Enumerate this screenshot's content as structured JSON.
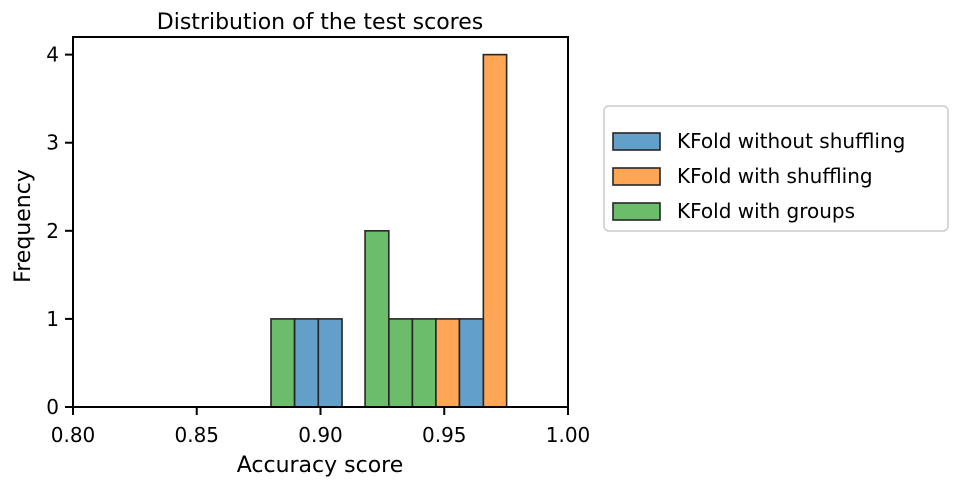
{
  "chart_data": {
    "type": "bar",
    "title": "Distribution of the test scores",
    "xlabel": "Accuracy score",
    "ylabel": "Frequency",
    "xlim": [
      0.8,
      1.0
    ],
    "ylim": [
      0,
      4.2
    ],
    "xticks": [
      "0.80",
      "0.85",
      "0.90",
      "0.95",
      "1.00"
    ],
    "yticks": [
      "0",
      "1",
      "2",
      "3",
      "4"
    ],
    "legend_position": "outside-right",
    "series": [
      {
        "name": "KFold without shuffling",
        "color": "#1f77b4",
        "bins": [
          {
            "x0": 0.8895,
            "x1": 0.8991,
            "count": 1
          },
          {
            "x0": 0.8991,
            "x1": 0.9087,
            "count": 1
          },
          {
            "x0": 0.9561,
            "x1": 0.9658,
            "count": 1
          }
        ]
      },
      {
        "name": "KFold with shuffling",
        "color": "#ff7f0e",
        "bins": [
          {
            "x0": 0.9466,
            "x1": 0.9561,
            "count": 1
          },
          {
            "x0": 0.9658,
            "x1": 0.9752,
            "count": 4
          }
        ]
      },
      {
        "name": "KFold with groups",
        "color": "#2ca02c",
        "bins": [
          {
            "x0": 0.88,
            "x1": 0.8895,
            "count": 1
          },
          {
            "x0": 0.918,
            "x1": 0.9276,
            "count": 2
          },
          {
            "x0": 0.9276,
            "x1": 0.9371,
            "count": 1
          },
          {
            "x0": 0.9371,
            "x1": 0.9466,
            "count": 1
          }
        ]
      }
    ]
  }
}
